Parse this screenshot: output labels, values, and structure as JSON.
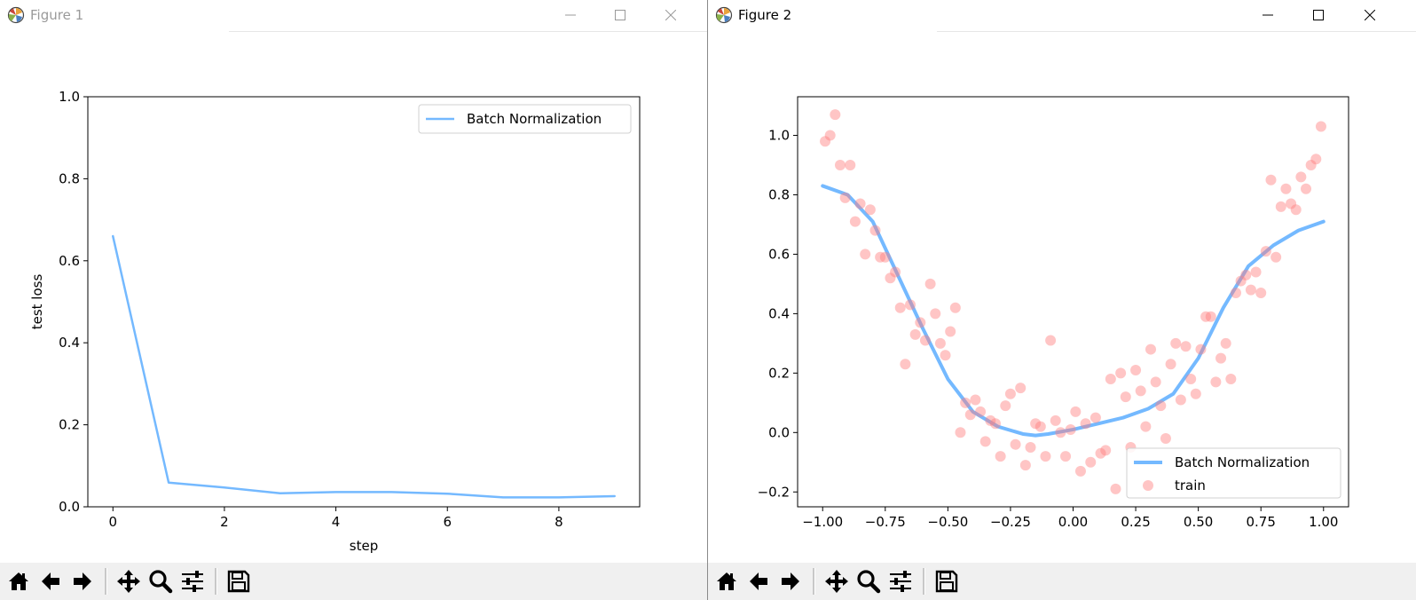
{
  "window1": {
    "title": "Figure 1",
    "icon": "matplotlib-icon",
    "controls": [
      "minimize-icon",
      "maximize-icon",
      "close-icon"
    ]
  },
  "window2": {
    "title": "Figure 2",
    "icon": "matplotlib-icon",
    "controls": [
      "minimize-icon",
      "maximize-icon",
      "close-icon"
    ]
  },
  "toolbar": {
    "buttons": [
      "home-icon",
      "back-arrow-icon",
      "forward-arrow-icon",
      "pan-icon",
      "zoom-icon",
      "subplots-config-icon",
      "save-icon"
    ]
  },
  "colors": {
    "line": "#74b9ff",
    "scatter": "#ff7f7f",
    "axes": "#000000",
    "toolbar_bg": "#f0f0f0"
  },
  "chart_data": [
    {
      "type": "line",
      "xlabel": "step",
      "ylabel": "test loss",
      "xlim": [
        -0.45,
        9.45
      ],
      "ylim": [
        0.0,
        1.0
      ],
      "xticks": [
        "0",
        "2",
        "4",
        "6",
        "8"
      ],
      "yticks": [
        "0.0",
        "0.2",
        "0.4",
        "0.6",
        "0.8",
        "1.0"
      ],
      "legend": {
        "position": "upper right",
        "entries": [
          "Batch Normalization"
        ]
      },
      "series": [
        {
          "name": "Batch Normalization",
          "x": [
            0,
            1,
            2,
            3,
            4,
            5,
            6,
            7,
            8,
            9
          ],
          "y": [
            0.66,
            0.059,
            0.047,
            0.033,
            0.036,
            0.036,
            0.032,
            0.023,
            0.023,
            0.026
          ]
        }
      ]
    },
    {
      "type": "scatter",
      "xlabel": "",
      "ylabel": "",
      "xlim": [
        -1.1,
        1.1
      ],
      "ylim": [
        -0.25,
        1.13
      ],
      "xticks": [
        "−1.00",
        "−0.75",
        "−0.50",
        "−0.25",
        "0.00",
        "0.25",
        "0.50",
        "0.75",
        "1.00"
      ],
      "yticks": [
        "−0.2",
        "0.0",
        "0.2",
        "0.4",
        "0.6",
        "0.8",
        "1.0"
      ],
      "legend": {
        "position": "lower right",
        "entries": [
          "Batch Normalization",
          "train"
        ]
      },
      "series": [
        {
          "name": "Batch Normalization",
          "type": "line",
          "x": [
            -1.0,
            -0.9,
            -0.8,
            -0.7,
            -0.6,
            -0.5,
            -0.4,
            -0.3,
            -0.2,
            -0.15,
            -0.1,
            0.0,
            0.1,
            0.2,
            0.3,
            0.4,
            0.5,
            0.6,
            0.7,
            0.8,
            0.9,
            1.0
          ],
          "y": [
            0.83,
            0.8,
            0.71,
            0.53,
            0.35,
            0.18,
            0.07,
            0.02,
            -0.005,
            -0.01,
            -0.005,
            0.01,
            0.03,
            0.05,
            0.08,
            0.13,
            0.25,
            0.42,
            0.56,
            0.63,
            0.68,
            0.71
          ]
        },
        {
          "name": "train",
          "type": "scatter",
          "x": [
            -0.99,
            -0.97,
            -0.95,
            -0.93,
            -0.91,
            -0.89,
            -0.87,
            -0.85,
            -0.83,
            -0.81,
            -0.79,
            -0.77,
            -0.75,
            -0.73,
            -0.71,
            -0.69,
            -0.67,
            -0.65,
            -0.63,
            -0.61,
            -0.59,
            -0.57,
            -0.55,
            -0.53,
            -0.51,
            -0.49,
            -0.47,
            -0.45,
            -0.43,
            -0.41,
            -0.39,
            -0.37,
            -0.35,
            -0.33,
            -0.31,
            -0.29,
            -0.27,
            -0.25,
            -0.23,
            -0.21,
            -0.19,
            -0.17,
            -0.15,
            -0.13,
            -0.11,
            -0.09,
            -0.07,
            -0.05,
            -0.03,
            -0.01,
            0.01,
            0.03,
            0.05,
            0.07,
            0.09,
            0.11,
            0.13,
            0.15,
            0.17,
            0.19,
            0.21,
            0.23,
            0.25,
            0.27,
            0.29,
            0.31,
            0.33,
            0.35,
            0.37,
            0.39,
            0.41,
            0.43,
            0.45,
            0.47,
            0.49,
            0.51,
            0.53,
            0.55,
            0.57,
            0.59,
            0.61,
            0.63,
            0.65,
            0.67,
            0.69,
            0.71,
            0.73,
            0.75,
            0.77,
            0.79,
            0.81,
            0.83,
            0.85,
            0.87,
            0.89,
            0.91,
            0.93,
            0.95,
            0.97,
            0.99
          ],
          "y": [
            0.98,
            1.0,
            1.07,
            0.9,
            0.79,
            0.9,
            0.71,
            0.77,
            0.6,
            0.75,
            0.68,
            0.59,
            0.59,
            0.52,
            0.54,
            0.42,
            0.23,
            0.43,
            0.33,
            0.37,
            0.31,
            0.5,
            0.4,
            0.3,
            0.26,
            0.34,
            0.42,
            0.0,
            0.1,
            0.06,
            0.11,
            0.07,
            -0.03,
            0.04,
            0.03,
            -0.08,
            0.09,
            0.13,
            -0.04,
            0.15,
            -0.11,
            -0.05,
            0.03,
            0.02,
            -0.08,
            0.31,
            0.04,
            0.0,
            -0.08,
            0.01,
            0.07,
            -0.13,
            0.03,
            -0.1,
            0.05,
            -0.07,
            -0.06,
            0.18,
            -0.19,
            0.2,
            0.12,
            -0.05,
            0.21,
            0.14,
            0.02,
            0.28,
            0.17,
            0.09,
            -0.02,
            0.23,
            0.3,
            0.11,
            0.29,
            0.18,
            0.13,
            0.28,
            0.39,
            0.39,
            0.17,
            0.25,
            0.3,
            0.18,
            0.47,
            0.51,
            0.53,
            0.48,
            0.54,
            0.47,
            0.61,
            0.85,
            0.59,
            0.76,
            0.82,
            0.77,
            0.75,
            0.86,
            0.82,
            0.9,
            0.92,
            1.03
          ]
        }
      ]
    }
  ]
}
